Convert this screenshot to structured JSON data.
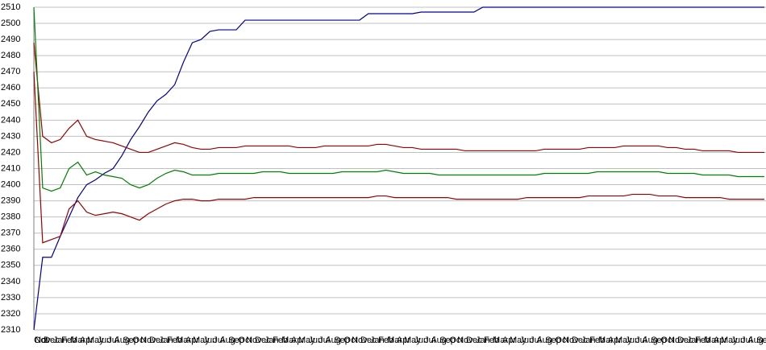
{
  "chart_data": {
    "type": "line",
    "categories": [
      "Oct",
      "Nov",
      "Dec",
      "Jan",
      "Feb",
      "Mar",
      "Apr",
      "May",
      "Jun",
      "Jul",
      "Aug",
      "Sep",
      "Oct",
      "Nov",
      "Dec",
      "Jan",
      "Feb",
      "Mar",
      "Apr",
      "May",
      "Jun",
      "Jul",
      "Aug",
      "Sep",
      "Oct",
      "Nov",
      "Dec",
      "Jan",
      "Feb",
      "Mar",
      "Apr",
      "May",
      "Jun",
      "Jul",
      "Aug",
      "Sep",
      "Oct",
      "Nov",
      "Dec",
      "Jan",
      "Feb",
      "Mar",
      "Apr",
      "May",
      "Jun",
      "Jul",
      "Aug",
      "Sep",
      "Oct",
      "Nov",
      "Dec",
      "Jan",
      "Feb",
      "Mar",
      "Apr",
      "May",
      "Jun",
      "Jul",
      "Aug",
      "Sep",
      "Oct",
      "Nov",
      "Dec",
      "Jan",
      "Feb",
      "Mar",
      "Apr",
      "May",
      "Jun",
      "Jul",
      "Aug",
      "Sep",
      "Oct",
      "Nov",
      "Dec",
      "Jan",
      "Feb",
      "Mar",
      "Apr",
      "May",
      "Jun",
      "Jul",
      "Aug",
      "Sep"
    ],
    "series": [
      {
        "color": "#000099",
        "values": [
          2310,
          2355,
          2355,
          2368,
          2380,
          2392,
          2400,
          2403,
          2407,
          2410,
          2418,
          2428,
          2436,
          2445,
          2452,
          2456,
          2462,
          2476,
          2488,
          2490,
          2495,
          2496,
          2496,
          2496,
          2502,
          2502,
          2502,
          2502,
          2502,
          2502,
          2502,
          2502,
          2502,
          2502,
          2502,
          2502,
          2502,
          2502,
          2506,
          2506,
          2506,
          2506,
          2506,
          2506,
          2507,
          2507,
          2507,
          2507,
          2507,
          2507,
          2507,
          2510,
          2510,
          2510,
          2510,
          2510,
          2510,
          2510,
          2510,
          2510,
          2510,
          2510,
          2510,
          2510,
          2510,
          2510,
          2510,
          2510,
          2510,
          2510,
          2510,
          2510,
          2510,
          2510,
          2510,
          2510,
          2510,
          2510,
          2510,
          2510,
          2510,
          2510,
          2510,
          2510
        ]
      },
      {
        "color": "#990000",
        "values": [
          2488,
          2430,
          2426,
          2428,
          2435,
          2440,
          2430,
          2428,
          2427,
          2426,
          2424,
          2422,
          2420,
          2420,
          2422,
          2424,
          2426,
          2425,
          2423,
          2422,
          2422,
          2423,
          2423,
          2423,
          2424,
          2424,
          2424,
          2424,
          2424,
          2424,
          2423,
          2423,
          2423,
          2424,
          2424,
          2424,
          2424,
          2424,
          2424,
          2425,
          2425,
          2424,
          2423,
          2423,
          2422,
          2422,
          2422,
          2422,
          2422,
          2421,
          2421,
          2421,
          2421,
          2421,
          2421,
          2421,
          2421,
          2421,
          2422,
          2422,
          2422,
          2422,
          2422,
          2423,
          2423,
          2423,
          2423,
          2424,
          2424,
          2424,
          2424,
          2424,
          2423,
          2423,
          2422,
          2422,
          2421,
          2421,
          2421,
          2421,
          2420,
          2420,
          2420,
          2420
        ]
      },
      {
        "color": "#008000",
        "values": [
          2510,
          2398,
          2396,
          2398,
          2410,
          2414,
          2406,
          2408,
          2406,
          2405,
          2404,
          2400,
          2398,
          2400,
          2404,
          2407,
          2409,
          2408,
          2406,
          2406,
          2406,
          2407,
          2407,
          2407,
          2407,
          2407,
          2408,
          2408,
          2408,
          2407,
          2407,
          2407,
          2407,
          2407,
          2407,
          2408,
          2408,
          2408,
          2408,
          2408,
          2409,
          2408,
          2407,
          2407,
          2407,
          2407,
          2406,
          2406,
          2406,
          2406,
          2406,
          2406,
          2406,
          2406,
          2406,
          2406,
          2406,
          2406,
          2407,
          2407,
          2407,
          2407,
          2407,
          2407,
          2408,
          2408,
          2408,
          2408,
          2408,
          2408,
          2408,
          2408,
          2407,
          2407,
          2407,
          2407,
          2406,
          2406,
          2406,
          2406,
          2405,
          2405,
          2405,
          2405
        ]
      },
      {
        "color": "#990000",
        "values": [
          2470,
          2364,
          2366,
          2368,
          2385,
          2390,
          2383,
          2381,
          2382,
          2383,
          2382,
          2380,
          2378,
          2382,
          2385,
          2388,
          2390,
          2391,
          2391,
          2390,
          2390,
          2391,
          2391,
          2391,
          2391,
          2392,
          2392,
          2392,
          2392,
          2392,
          2392,
          2392,
          2392,
          2392,
          2392,
          2392,
          2392,
          2392,
          2392,
          2393,
          2393,
          2392,
          2392,
          2392,
          2392,
          2392,
          2392,
          2392,
          2391,
          2391,
          2391,
          2391,
          2391,
          2391,
          2391,
          2391,
          2392,
          2392,
          2392,
          2392,
          2392,
          2392,
          2392,
          2393,
          2393,
          2393,
          2393,
          2393,
          2394,
          2394,
          2394,
          2393,
          2393,
          2393,
          2392,
          2392,
          2392,
          2392,
          2392,
          2391,
          2391,
          2391,
          2391,
          2391
        ]
      }
    ],
    "ylim": [
      2310,
      2510
    ],
    "yticks": [
      2310,
      2320,
      2330,
      2340,
      2350,
      2360,
      2370,
      2380,
      2390,
      2400,
      2410,
      2420,
      2430,
      2440,
      2450,
      2460,
      2470,
      2480,
      2490,
      2500,
      2510
    ],
    "grid": true
  }
}
